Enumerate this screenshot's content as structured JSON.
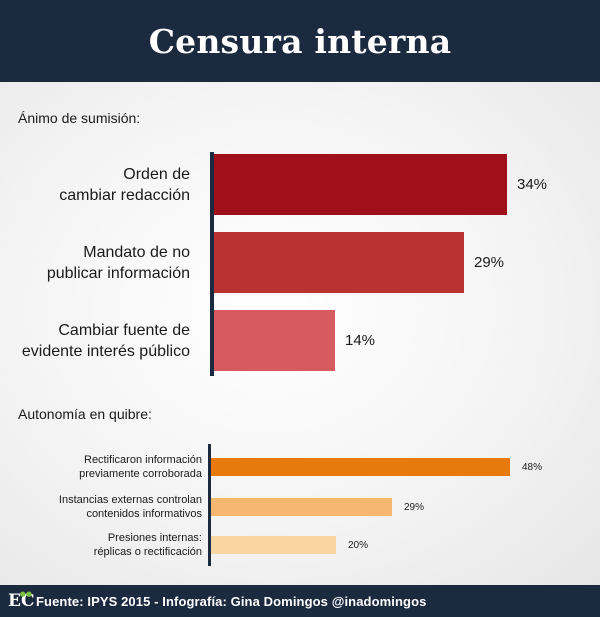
{
  "header": {
    "title": "Censura interna"
  },
  "chart_data": [
    {
      "type": "bar",
      "orientation": "horizontal",
      "title": "Ánimo de sumisión:",
      "categories": [
        [
          "Orden de",
          "cambiar redacción"
        ],
        [
          "Mandato de no",
          "publicar información"
        ],
        [
          "Cambiar fuente de",
          "evidente interés público"
        ]
      ],
      "values": [
        34,
        29,
        14
      ],
      "value_labels": [
        "34%",
        "29%",
        "14%"
      ],
      "colors": [
        "#a0101a",
        "#bb3233",
        "#d65a60"
      ],
      "xlim": [
        0,
        34
      ],
      "grid": false
    },
    {
      "type": "bar",
      "orientation": "horizontal",
      "title": "Autonomía en quibre:",
      "categories": [
        [
          "Rectificaron información",
          "previamente corroborada"
        ],
        [
          "Instancias externas controlan",
          "contenidos informativos"
        ],
        [
          "Presiones internas:",
          "réplicas o rectificación"
        ]
      ],
      "values": [
        48,
        29,
        20
      ],
      "value_labels": [
        "48%",
        "29%",
        "20%"
      ],
      "colors": [
        "#e8790c",
        "#f6b870",
        "#f9d6a1"
      ],
      "xlim": [
        0,
        48
      ],
      "grid": false
    }
  ],
  "footer": {
    "logo": "EC",
    "source": "Fuente: IPYS 2015 - Infografía: Gina Domingos @inadomingos"
  }
}
